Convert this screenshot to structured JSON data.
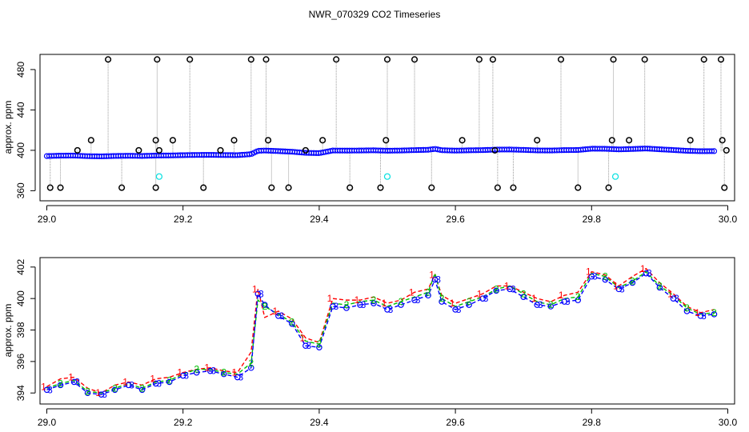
{
  "title": "NWR_070329  CO2 Timeseries",
  "chart_data": [
    {
      "type": "scatter",
      "title": "",
      "xlabel": "",
      "ylabel": "approx. ppm",
      "xlim": [
        28.99,
        30.01
      ],
      "ylim": [
        350,
        495
      ],
      "xticks": [
        29.0,
        29.2,
        29.4,
        29.6,
        29.8,
        30.0
      ],
      "xtick_labels": [
        "29.0",
        "29.2",
        "29.4",
        "29.6",
        "29.8",
        "30.0"
      ],
      "yticks": [
        360,
        400,
        440,
        480
      ],
      "ytick_labels": [
        "360",
        "400",
        "440",
        "480"
      ],
      "grid": false,
      "series": [
        {
          "color": "#0000ff",
          "x": [
            29.0,
            29.02,
            29.04,
            29.06,
            29.08,
            29.1,
            29.12,
            29.14,
            29.16,
            29.18,
            29.2,
            29.22,
            29.24,
            29.26,
            29.28,
            29.3,
            29.31,
            29.32,
            29.34,
            29.36,
            29.38,
            29.4,
            29.42,
            29.44,
            29.46,
            29.48,
            29.5,
            29.52,
            29.54,
            29.56,
            29.57,
            29.58,
            29.6,
            29.62,
            29.64,
            29.66,
            29.68,
            29.7,
            29.72,
            29.74,
            29.76,
            29.78,
            29.8,
            29.82,
            29.84,
            29.86,
            29.88,
            29.9,
            29.92,
            29.94,
            29.96,
            29.98
          ],
          "y": [
            394.3,
            394.7,
            394.8,
            394.2,
            394.0,
            394.4,
            394.6,
            394.4,
            394.8,
            394.9,
            395.2,
            395.4,
            395.5,
            395.3,
            395.2,
            396.2,
            399.5,
            399.8,
            399.2,
            398.6,
            397.5,
            397.2,
            399.8,
            399.7,
            399.8,
            400.0,
            399.6,
            399.8,
            400.2,
            400.5,
            401.4,
            400.1,
            399.7,
            400.0,
            400.2,
            400.7,
            400.8,
            400.4,
            399.9,
            399.8,
            400.2,
            400.3,
            401.6,
            401.5,
            400.9,
            401.3,
            401.8,
            401.0,
            400.3,
            399.5,
            399.1,
            399.2
          ]
        },
        {
          "color": "#000000",
          "marker": "outlier-circle",
          "x": [
            29.005,
            29.02,
            29.045,
            29.065,
            29.09,
            29.11,
            29.135,
            29.16,
            29.16,
            29.162,
            29.165,
            29.185,
            29.21,
            29.23,
            29.255,
            29.275,
            29.3,
            29.322,
            29.325,
            29.33,
            29.355,
            29.38,
            29.405,
            29.425,
            29.445,
            29.49,
            29.498,
            29.5,
            29.54,
            29.565,
            29.61,
            29.635,
            29.655,
            29.658,
            29.662,
            29.685,
            29.72,
            29.755,
            29.78,
            29.825,
            29.83,
            29.832,
            29.855,
            29.878,
            29.945,
            29.965,
            29.99,
            29.992,
            29.995,
            29.998
          ],
          "y": [
            363,
            363,
            400,
            410,
            490,
            363,
            400,
            363,
            410,
            490,
            400,
            410,
            490,
            363,
            400,
            410,
            490,
            490,
            410,
            363,
            363,
            400,
            410,
            490,
            363,
            363,
            410,
            490,
            490,
            363,
            410,
            490,
            490,
            400,
            363,
            363,
            410,
            490,
            363,
            363,
            410,
            490,
            410,
            490,
            410,
            490,
            490,
            410,
            363,
            400
          ]
        },
        {
          "color": "#00e0e0",
          "marker": "circle",
          "x": [
            29.165,
            29.5,
            29.835
          ],
          "y": [
            374,
            374,
            374
          ]
        }
      ]
    },
    {
      "type": "line",
      "title": "",
      "xlabel": "",
      "ylabel": "approx. ppm",
      "xlim": [
        28.99,
        30.01
      ],
      "ylim": [
        393.3,
        402.6
      ],
      "xticks": [
        29.0,
        29.2,
        29.4,
        29.6,
        29.8,
        30.0
      ],
      "xtick_labels": [
        "29.0",
        "29.2",
        "29.4",
        "29.6",
        "29.8",
        "30.0"
      ],
      "yticks": [
        394,
        396,
        398,
        400,
        402
      ],
      "ytick_labels": [
        "394",
        "396",
        "398",
        "400",
        "402"
      ],
      "grid": false,
      "x": [
        29.0,
        29.02,
        29.04,
        29.06,
        29.08,
        29.1,
        29.12,
        29.14,
        29.16,
        29.18,
        29.2,
        29.22,
        29.24,
        29.26,
        29.28,
        29.3,
        29.31,
        29.32,
        29.34,
        29.36,
        29.38,
        29.4,
        29.42,
        29.44,
        29.46,
        29.48,
        29.5,
        29.52,
        29.54,
        29.56,
        29.57,
        29.58,
        29.6,
        29.62,
        29.64,
        29.66,
        29.68,
        29.7,
        29.72,
        29.74,
        29.76,
        29.78,
        29.8,
        29.82,
        29.84,
        29.86,
        29.88,
        29.9,
        29.92,
        29.94,
        29.96,
        29.98
      ],
      "series": [
        {
          "marker": "1",
          "color": "#ff0000",
          "values": [
            394.4,
            394.9,
            395.0,
            394.3,
            394.0,
            394.5,
            394.7,
            394.5,
            394.9,
            395.0,
            395.3,
            395.5,
            395.6,
            395.4,
            395.3,
            396.6,
            400.6,
            398.8,
            399.2,
            398.7,
            397.5,
            397.2,
            400.0,
            399.9,
            399.9,
            400.1,
            399.7,
            399.9,
            400.4,
            400.6,
            401.5,
            400.2,
            399.7,
            400.0,
            400.3,
            400.8,
            400.8,
            400.4,
            400.0,
            399.8,
            400.2,
            400.4,
            401.7,
            401.5,
            400.8,
            401.4,
            401.9,
            401.0,
            400.3,
            399.5,
            399.1,
            399.3
          ]
        },
        {
          "marker": "2",
          "color": "#00c000",
          "values": [
            394.3,
            394.6,
            394.8,
            394.1,
            394.0,
            394.3,
            394.6,
            394.3,
            394.7,
            394.8,
            395.2,
            395.5,
            395.5,
            395.3,
            395.2,
            395.9,
            399.9,
            399.5,
            399.0,
            398.5,
            397.3,
            397.1,
            399.7,
            399.6,
            399.8,
            399.9,
            399.5,
            399.8,
            400.1,
            400.4,
            401.6,
            400.0,
            399.5,
            399.8,
            400.1,
            400.6,
            400.8,
            400.3,
            399.8,
            399.6,
            400.0,
            400.1,
            401.6,
            401.4,
            400.7,
            401.1,
            401.7,
            400.8,
            400.2,
            399.4,
            399.0,
            399.1
          ]
        },
        {
          "marker": "3",
          "color": "#0000ff",
          "values": [
            394.2,
            394.5,
            394.7,
            394.0,
            393.9,
            394.2,
            394.5,
            394.2,
            394.6,
            394.7,
            395.1,
            395.3,
            395.4,
            395.2,
            395.0,
            395.6,
            400.3,
            399.6,
            398.9,
            398.4,
            397.0,
            396.9,
            399.5,
            399.4,
            399.6,
            399.7,
            399.3,
            399.6,
            399.9,
            400.2,
            401.2,
            399.8,
            399.3,
            399.6,
            400.0,
            400.5,
            400.6,
            400.1,
            399.6,
            399.5,
            399.8,
            399.9,
            401.4,
            401.2,
            400.6,
            401.0,
            401.6,
            400.7,
            400.0,
            399.2,
            398.9,
            399.0
          ]
        }
      ]
    }
  ]
}
